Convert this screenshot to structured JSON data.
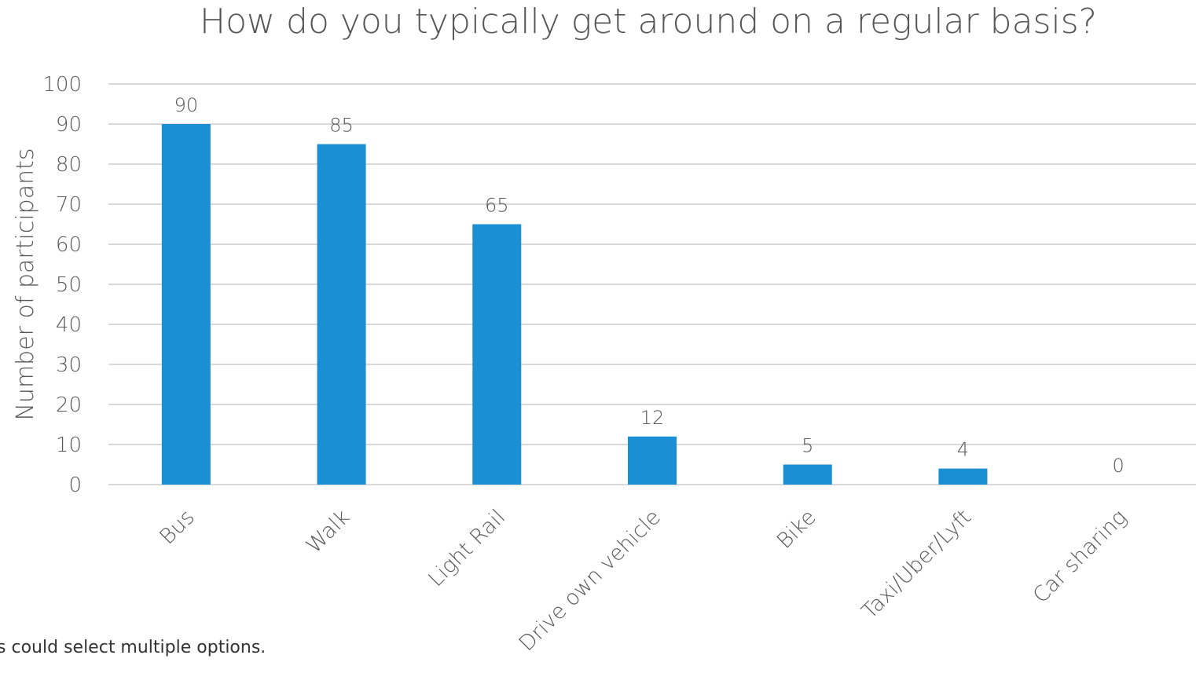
{
  "chart_data": {
    "type": "bar",
    "title": "How do you typically get around on a regular basis?",
    "xlabel": "",
    "ylabel": "Number of participants",
    "ylim": [
      0,
      100
    ],
    "yticks": [
      0,
      10,
      20,
      30,
      40,
      50,
      60,
      70,
      80,
      90,
      100
    ],
    "grid": true,
    "legend": "none",
    "categories": [
      "Bus",
      "Walk",
      "Light Rail",
      "Drive own vehicle",
      "Bike",
      "Taxi/Uber/Lyft",
      "Car sharing"
    ],
    "values": [
      90,
      85,
      65,
      12,
      5,
      4,
      0
    ],
    "bar_color": "#1a8fd3",
    "grid_color": "#d9d9d9"
  },
  "footnote": "ants could select multiple options."
}
